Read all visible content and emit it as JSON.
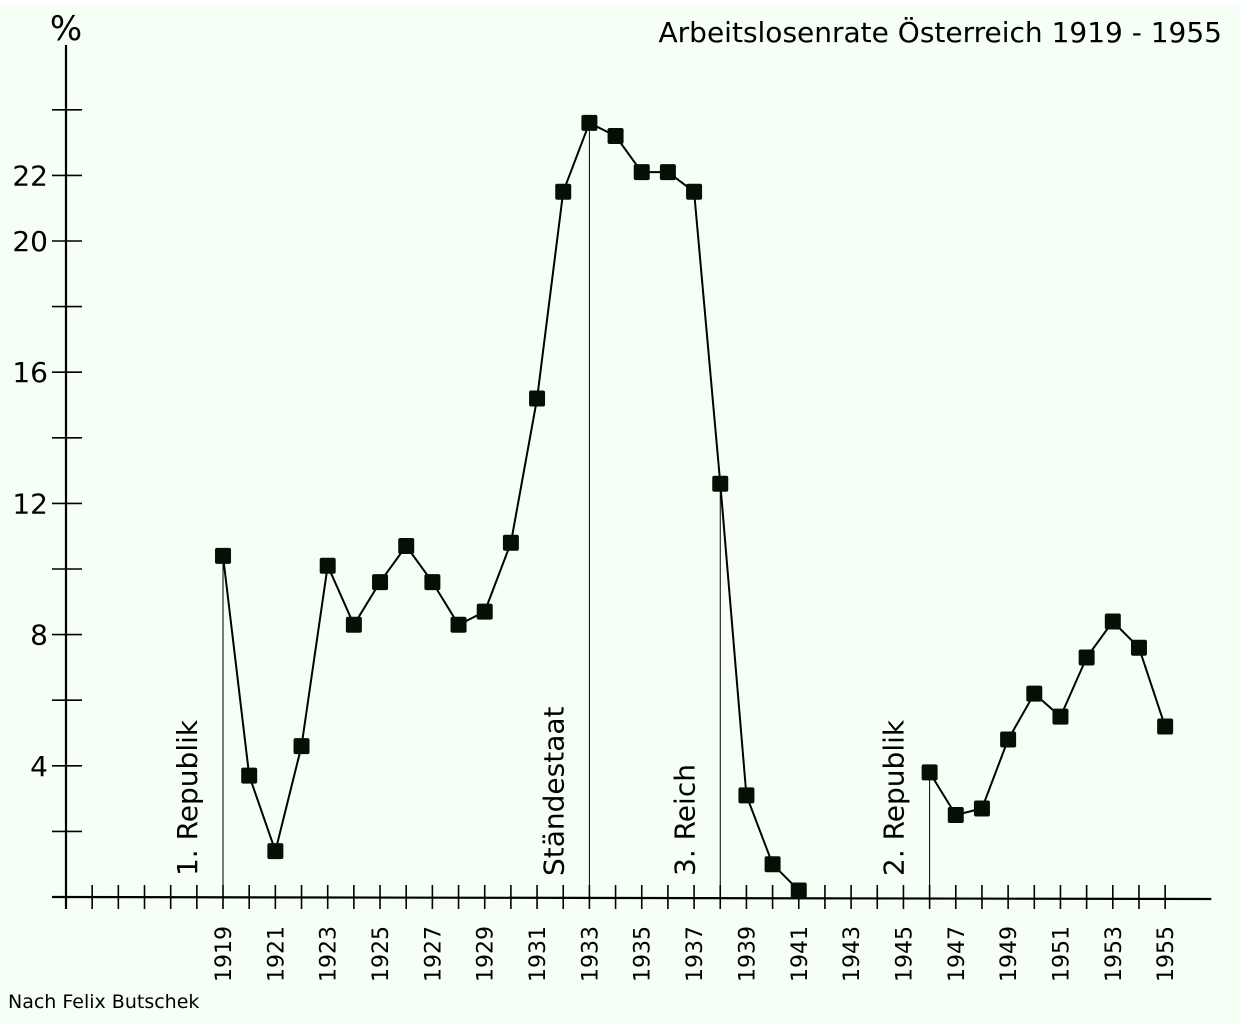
{
  "chart_data": {
    "type": "line",
    "title": "Arbeitslosenrate Österreich 1919 - 1955",
    "ylabel": "%",
    "xlabel": "",
    "source_note": "Nach Felix Butschek",
    "xlim": [
      1913,
      1956
    ],
    "ylim": [
      0,
      24
    ],
    "y_ticks_labeled": [
      4,
      8,
      12,
      16,
      20,
      22
    ],
    "x_ticks_labeled": [
      1919,
      1921,
      1923,
      1925,
      1927,
      1929,
      1931,
      1933,
      1935,
      1937,
      1939,
      1941,
      1943,
      1945,
      1947,
      1949,
      1951,
      1953,
      1955
    ],
    "grid": false,
    "legend": "none",
    "series": [
      {
        "segments": [
          {
            "x": [
              1919,
              1920,
              1921,
              1922,
              1923,
              1924,
              1925,
              1926,
              1927,
              1928,
              1929,
              1930,
              1931,
              1932,
              1933,
              1934,
              1935,
              1936,
              1937,
              1938,
              1939,
              1940,
              1941
            ],
            "y": [
              10.4,
              3.7,
              1.4,
              4.6,
              10.1,
              8.3,
              9.6,
              10.7,
              9.6,
              8.3,
              8.7,
              10.8,
              15.2,
              21.5,
              23.6,
              23.2,
              22.1,
              22.1,
              21.5,
              12.6,
              3.1,
              1.0,
              0.2
            ]
          },
          {
            "x": [
              1946,
              1947,
              1948,
              1949,
              1950,
              1951,
              1952,
              1953,
              1954,
              1955
            ],
            "y": [
              3.8,
              2.5,
              2.7,
              4.8,
              6.2,
              5.5,
              7.3,
              8.4,
              7.6,
              5.2
            ]
          }
        ]
      }
    ],
    "annotations": [
      {
        "label": "1. Republik",
        "marker_x": 1919
      },
      {
        "label": "Ständestaat",
        "marker_x": 1933
      },
      {
        "label": "3. Reich",
        "marker_x": 1938
      },
      {
        "label": "2. Republik",
        "marker_x": 1946
      }
    ],
    "colors": {
      "background": "#f5fff5",
      "ink": "#000000",
      "marker": "#051005"
    }
  }
}
